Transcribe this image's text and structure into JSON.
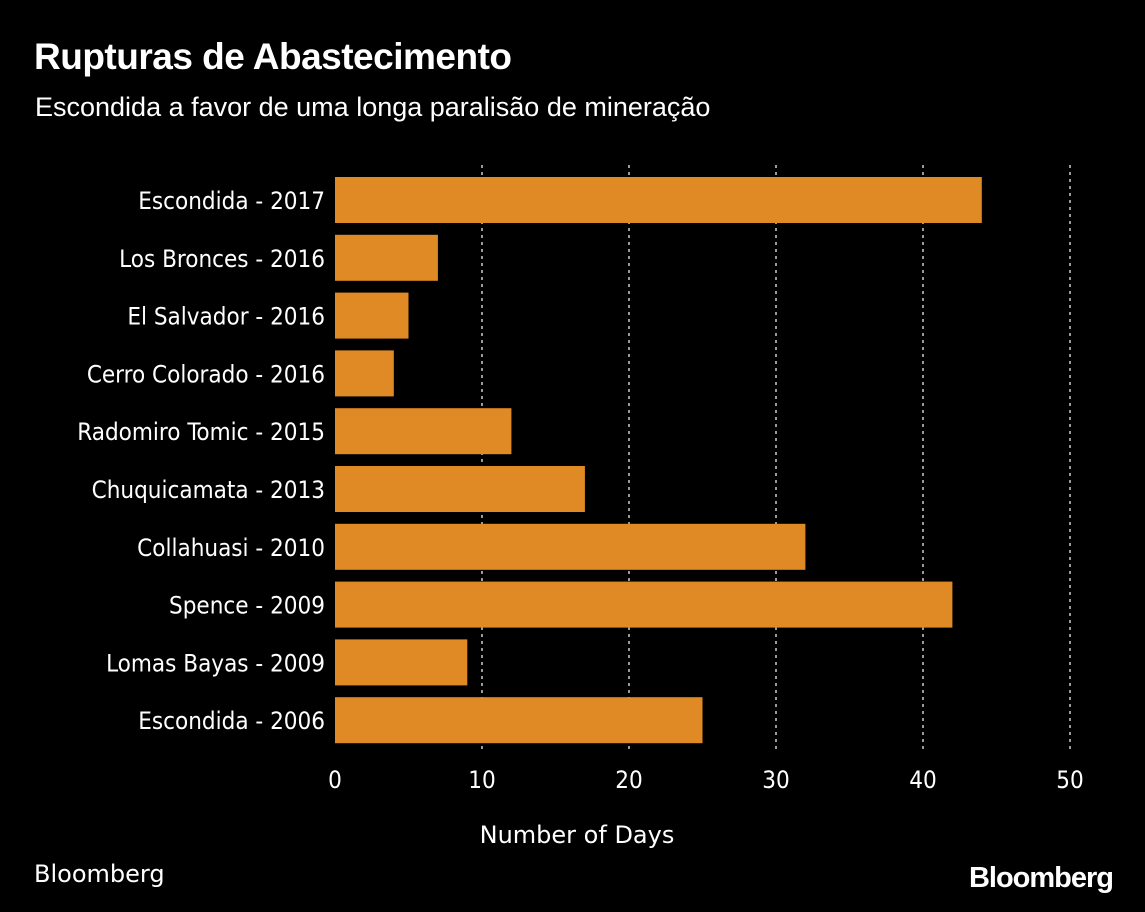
{
  "chart_data": {
    "type": "bar",
    "orientation": "horizontal",
    "title": "Rupturas de Abastecimento",
    "subtitle": "Escondida a favor de uma longa paralisão de mineração",
    "categories": [
      "Escondida - 2017",
      "Los Bronces - 2016",
      "El Salvador - 2016",
      "Cerro Colorado - 2016",
      "Radomiro Tomic - 2015",
      "Chuquicamata - 2013",
      "Collahuasi - 2010",
      "Spence - 2009",
      "Lomas Bayas - 2009",
      "Escondida - 2006"
    ],
    "values": [
      44,
      7,
      5,
      4,
      12,
      17,
      32,
      42,
      9,
      25
    ],
    "xlabel": "Number of Days",
    "ylabel": "",
    "xlim": [
      0,
      50
    ],
    "xticks": [
      0,
      10,
      20,
      30,
      40,
      50
    ],
    "grid": true,
    "bar_color": "#e08a25"
  },
  "source": "Bloomberg",
  "logo": "Bloomberg"
}
